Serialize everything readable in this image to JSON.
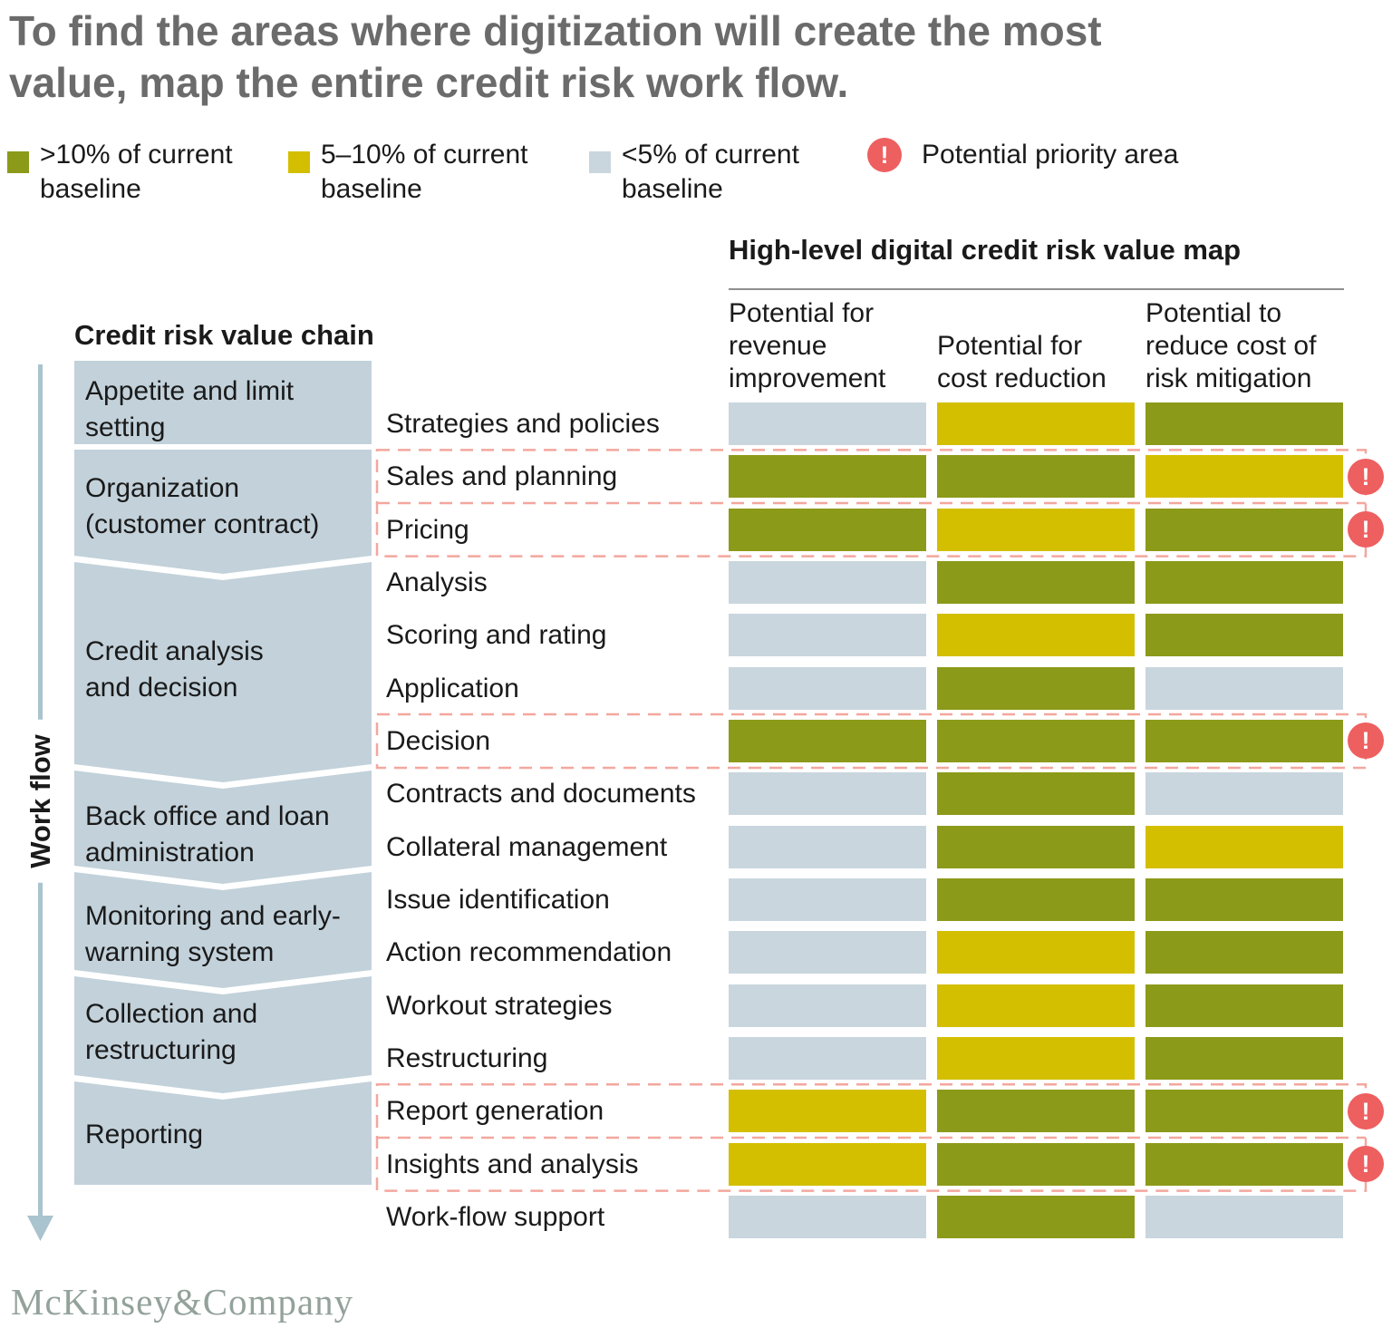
{
  "title": {
    "text": "To find the areas where digitization will create the most\nvalue, map the entire credit risk work flow."
  },
  "legend": {
    "items": [
      {
        "label": ">10% of current\nbaseline",
        "level": "high",
        "color": "#8c9a19"
      },
      {
        "label": "5–10% of current\nbaseline",
        "level": "medium",
        "color": "#d3bf00"
      },
      {
        "label": "<5% of current\nbaseline",
        "level": "low",
        "color": "#c9d6de"
      }
    ],
    "priority": {
      "label": "Potential priority area",
      "glyph": "!",
      "color": "#ee5f60"
    }
  },
  "workflow": {
    "label": "Work flow"
  },
  "value_chain": {
    "heading": "Credit risk value chain",
    "stages": [
      {
        "label": "Appetite and limit\nsetting"
      },
      {
        "label": "Organization\n(customer contract)"
      },
      {
        "label": "Credit analysis\nand decision"
      },
      {
        "label": "Back office and loan\nadministration"
      },
      {
        "label": "Monitoring and early-\nwarning system"
      },
      {
        "label": "Collection and\nrestructuring"
      },
      {
        "label": "Reporting"
      }
    ]
  },
  "value_map": {
    "heading": "High-level digital credit risk value map",
    "columns_display": [
      "Potential for\nrevenue\nimprovement",
      "Potential for\ncost reduction",
      "Potential to\nreduce cost of\nrisk mitigation"
    ]
  },
  "footer": {
    "brand": "McKinsey&Company"
  },
  "colors": {
    "chain_box": "#c2d1da",
    "workflow_arrow": "#a9c3cf",
    "priority_dash": "#f3a79e",
    "priority_red": "#ee5f60",
    "title_gray": "#6b6b6b",
    "footer_gray": "#93a29b"
  },
  "chart_data": {
    "type": "heatmap",
    "title": "High-level digital credit risk value map",
    "columns": [
      "Potential for revenue improvement",
      "Potential for cost reduction",
      "Potential to reduce cost of risk mitigation"
    ],
    "rows": [
      "Strategies and policies",
      "Sales and planning",
      "Pricing",
      "Analysis",
      "Scoring and rating",
      "Application",
      "Decision",
      "Contracts and documents",
      "Collateral management",
      "Issue identification",
      "Action recommendation",
      "Workout strategies",
      "Restructuring",
      "Report generation",
      "Insights and analysis",
      "Work-flow support"
    ],
    "values": [
      [
        "low",
        "medium",
        "high"
      ],
      [
        "high",
        "high",
        "medium"
      ],
      [
        "high",
        "medium",
        "high"
      ],
      [
        "low",
        "high",
        "high"
      ],
      [
        "low",
        "medium",
        "high"
      ],
      [
        "low",
        "high",
        "low"
      ],
      [
        "high",
        "high",
        "high"
      ],
      [
        "low",
        "high",
        "low"
      ],
      [
        "low",
        "high",
        "medium"
      ],
      [
        "low",
        "high",
        "high"
      ],
      [
        "low",
        "medium",
        "high"
      ],
      [
        "low",
        "medium",
        "high"
      ],
      [
        "low",
        "medium",
        "high"
      ],
      [
        "medium",
        "high",
        "high"
      ],
      [
        "medium",
        "high",
        "high"
      ],
      [
        "low",
        "high",
        "low"
      ]
    ],
    "levels": {
      "high": ">10% of current baseline",
      "medium": "5–10% of current baseline",
      "low": "<5% of current baseline"
    },
    "level_colors": {
      "high": "#8c9a19",
      "medium": "#d3bf00",
      "low": "#c9d6de"
    },
    "priority_rows": [
      1,
      2,
      6,
      13,
      14
    ],
    "priority_label": "Potential priority area",
    "stage_row_map": [
      {
        "stage": "Appetite and limit setting",
        "rows": [
          "Strategies and policies"
        ]
      },
      {
        "stage": "Organization (customer contract)",
        "rows": [
          "Sales and planning",
          "Pricing"
        ]
      },
      {
        "stage": "Credit analysis and decision",
        "rows": [
          "Analysis",
          "Scoring and rating",
          "Application",
          "Decision"
        ]
      },
      {
        "stage": "Back office and loan administration",
        "rows": [
          "Contracts and documents",
          "Collateral management"
        ]
      },
      {
        "stage": "Monitoring and early-warning system",
        "rows": [
          "Issue identification",
          "Action recommendation"
        ]
      },
      {
        "stage": "Collection and restructuring",
        "rows": [
          "Workout strategies",
          "Restructuring"
        ]
      },
      {
        "stage": "Reporting",
        "rows": [
          "Report generation",
          "Insights and analysis"
        ]
      },
      {
        "stage": "",
        "rows": [
          "Work-flow support"
        ]
      }
    ]
  }
}
